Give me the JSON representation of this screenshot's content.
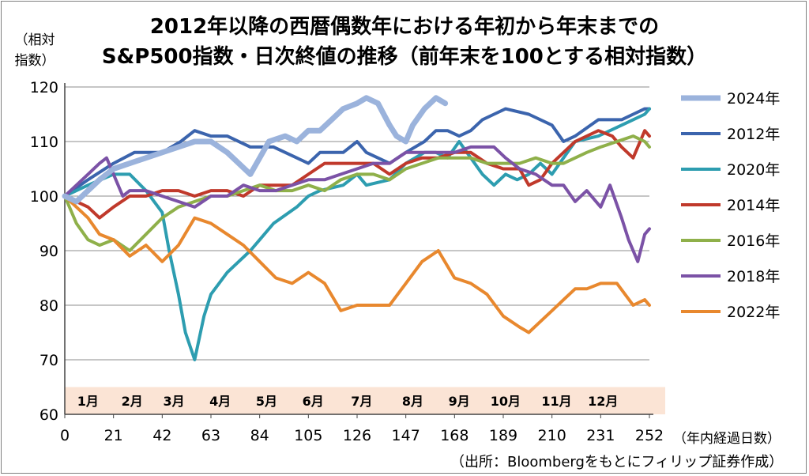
{
  "title": {
    "line1": "2012年以降の西暦偶数年における年初から年末までの",
    "line2": "S&P500指数・日次終値の推移（前年末を100とする相対指数）"
  },
  "y_axis_label_1": "（相対",
  "y_axis_label_2": "指数）",
  "x_axis_label": "（年内経過日数）",
  "source": "（出所：Bloombergをもとにフィリップ証券作成）",
  "months": [
    "1月",
    "2月",
    "3月",
    "4月",
    "5月",
    "6月",
    "7月",
    "8月",
    "9月",
    "10月",
    "11月",
    "12月"
  ],
  "chart_data": {
    "type": "line",
    "title": "2012年以降の西暦偶数年における年初から年末までのS&P500指数・日次終値の推移（前年末を100とする相対指数）",
    "xlabel": "（年内経過日数）",
    "ylabel": "（相対指数）",
    "xlim": [
      0,
      252
    ],
    "ylim": [
      60,
      120
    ],
    "xticks": [
      0,
      21,
      42,
      63,
      84,
      105,
      126,
      147,
      168,
      189,
      210,
      231,
      252
    ],
    "yticks": [
      60,
      70,
      80,
      90,
      100,
      110,
      120
    ],
    "grid": "horizontal",
    "legend_position": "right",
    "series": [
      {
        "name": "2024年",
        "color": "#9bb3dc",
        "width": 7,
        "x": [
          0,
          5,
          10,
          15,
          21,
          28,
          35,
          42,
          49,
          56,
          63,
          70,
          75,
          80,
          84,
          88,
          95,
          100,
          105,
          110,
          115,
          120,
          126,
          130,
          135,
          140,
          143,
          147,
          150,
          155,
          160,
          164
        ],
        "y": [
          100,
          99,
          101,
          103,
          105,
          106,
          107,
          108,
          109,
          110,
          110,
          108,
          106,
          104,
          107,
          110,
          111,
          110,
          112,
          112,
          114,
          116,
          117,
          118,
          117,
          113,
          111,
          110,
          113,
          116,
          118,
          117
        ]
      },
      {
        "name": "2012年",
        "color": "#3b64ad",
        "width": 4,
        "x": [
          0,
          10,
          21,
          30,
          42,
          50,
          56,
          63,
          70,
          80,
          90,
          100,
          105,
          110,
          120,
          126,
          130,
          140,
          147,
          155,
          160,
          165,
          170,
          175,
          180,
          185,
          190,
          200,
          210,
          215,
          220,
          230,
          240,
          245,
          250,
          252
        ],
        "y": [
          100,
          103,
          106,
          108,
          108,
          110,
          112,
          111,
          111,
          109,
          109,
          107,
          106,
          108,
          108,
          110,
          108,
          106,
          108,
          110,
          112,
          112,
          111,
          112,
          114,
          115,
          116,
          115,
          113,
          110,
          111,
          114,
          114,
          115,
          116,
          116
        ]
      },
      {
        "name": "2020年",
        "color": "#2d9db0",
        "width": 4,
        "x": [
          0,
          10,
          21,
          28,
          35,
          42,
          45,
          49,
          52,
          56,
          60,
          63,
          70,
          75,
          80,
          84,
          90,
          100,
          105,
          110,
          120,
          126,
          130,
          140,
          147,
          155,
          160,
          165,
          170,
          175,
          180,
          185,
          190,
          195,
          200,
          205,
          210,
          215,
          220,
          230,
          240,
          245,
          250,
          252
        ],
        "y": [
          100,
          102,
          104,
          104,
          101,
          97,
          90,
          82,
          75,
          70,
          78,
          82,
          86,
          88,
          90,
          92,
          95,
          98,
          100,
          101,
          102,
          104,
          102,
          103,
          106,
          108,
          108,
          107,
          110,
          107,
          104,
          102,
          104,
          103,
          104,
          106,
          104,
          107,
          110,
          111,
          113,
          114,
          115,
          116
        ]
      },
      {
        "name": "2014年",
        "color": "#c0392b",
        "width": 4,
        "x": [
          0,
          5,
          10,
          15,
          21,
          28,
          35,
          42,
          49,
          56,
          63,
          70,
          77,
          84,
          91,
          98,
          105,
          112,
          119,
          126,
          133,
          140,
          147,
          154,
          161,
          168,
          175,
          182,
          189,
          196,
          200,
          205,
          210,
          215,
          220,
          230,
          236,
          240,
          245,
          250,
          252
        ],
        "y": [
          100,
          99,
          98,
          96,
          98,
          100,
          100,
          101,
          101,
          100,
          101,
          101,
          100,
          102,
          102,
          102,
          104,
          106,
          106,
          106,
          106,
          104,
          106,
          107,
          107,
          108,
          108,
          106,
          105,
          105,
          102,
          103,
          106,
          108,
          110,
          112,
          111,
          109,
          107,
          112,
          111
        ]
      },
      {
        "name": "2016年",
        "color": "#8fb04a",
        "width": 4,
        "x": [
          0,
          5,
          10,
          15,
          21,
          28,
          35,
          42,
          49,
          56,
          63,
          70,
          77,
          84,
          91,
          98,
          105,
          112,
          119,
          126,
          133,
          140,
          147,
          154,
          161,
          168,
          175,
          182,
          189,
          196,
          203,
          210,
          215,
          220,
          225,
          231,
          238,
          245,
          250,
          252
        ],
        "y": [
          100,
          95,
          92,
          91,
          92,
          90,
          93,
          96,
          98,
          99,
          100,
          100,
          101,
          102,
          101,
          101,
          102,
          101,
          103,
          104,
          104,
          103,
          105,
          106,
          107,
          107,
          107,
          106,
          106,
          106,
          107,
          106,
          106,
          107,
          108,
          109,
          110,
          111,
          110,
          109
        ]
      },
      {
        "name": "2018年",
        "color": "#7b52a6",
        "width": 4,
        "x": [
          0,
          5,
          10,
          15,
          18,
          21,
          25,
          28,
          35,
          42,
          49,
          56,
          63,
          70,
          77,
          84,
          91,
          98,
          105,
          112,
          119,
          126,
          133,
          140,
          147,
          154,
          161,
          168,
          175,
          180,
          185,
          190,
          196,
          203,
          210,
          215,
          220,
          225,
          231,
          235,
          240,
          243,
          247,
          250,
          252
        ],
        "y": [
          100,
          102,
          104,
          106,
          107,
          104,
          100,
          101,
          101,
          100,
          99,
          98,
          100,
          100,
          102,
          101,
          101,
          102,
          103,
          103,
          104,
          105,
          106,
          106,
          108,
          108,
          108,
          108,
          109,
          109,
          109,
          107,
          105,
          104,
          102,
          102,
          99,
          101,
          98,
          102,
          96,
          92,
          88,
          93,
          94
        ]
      },
      {
        "name": "2022年",
        "color": "#e8882e",
        "width": 4,
        "x": [
          0,
          5,
          10,
          15,
          21,
          28,
          35,
          42,
          49,
          56,
          63,
          70,
          77,
          84,
          91,
          98,
          105,
          112,
          119,
          126,
          133,
          140,
          147,
          154,
          161,
          168,
          175,
          182,
          189,
          196,
          200,
          205,
          210,
          215,
          220,
          225,
          231,
          238,
          245,
          250,
          252
        ],
        "y": [
          100,
          98,
          96,
          93,
          92,
          89,
          91,
          88,
          91,
          96,
          95,
          93,
          91,
          88,
          85,
          84,
          86,
          84,
          79,
          80,
          80,
          80,
          84,
          88,
          90,
          85,
          84,
          82,
          78,
          76,
          75,
          77,
          79,
          81,
          83,
          83,
          84,
          84,
          80,
          81,
          80
        ]
      }
    ]
  }
}
